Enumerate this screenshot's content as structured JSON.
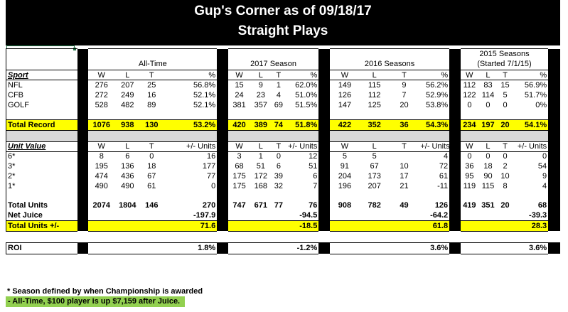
{
  "title": {
    "line1": "Gup's Corner as of 09/18/17",
    "line2": "Straight Plays"
  },
  "headers": {
    "alltime": "All-Time",
    "s2017": "2017 Season",
    "s2016": "2016 Seasons",
    "s2015a": "2015 Seasons",
    "s2015b": "(Started 7/1/15)"
  },
  "sport_section": {
    "label": "Sport",
    "cols": [
      "W",
      "L",
      "T",
      "%"
    ],
    "rows": [
      {
        "name": "NFL",
        "at": [
          "276",
          "207",
          "25",
          "56.8%"
        ],
        "s17": [
          "15",
          "9",
          "1",
          "62.0%"
        ],
        "s16": [
          "149",
          "115",
          "9",
          "56.2%"
        ],
        "s15": [
          "112",
          "83",
          "15",
          "56.9%"
        ]
      },
      {
        "name": "CFB",
        "at": [
          "272",
          "249",
          "16",
          "52.1%"
        ],
        "s17": [
          "24",
          "23",
          "4",
          "51.0%"
        ],
        "s16": [
          "126",
          "112",
          "7",
          "52.9%"
        ],
        "s15": [
          "122",
          "114",
          "5",
          "51.7%"
        ]
      },
      {
        "name": "GOLF",
        "at": [
          "528",
          "482",
          "89",
          "52.1%"
        ],
        "s17": [
          "381",
          "357",
          "69",
          "51.5%"
        ],
        "s16": [
          "147",
          "125",
          "20",
          "53.8%"
        ],
        "s15": [
          "0",
          "0",
          "0",
          "0%"
        ]
      }
    ],
    "total": {
      "name": "Total Record",
      "at": [
        "1076",
        "938",
        "130",
        "53.2%"
      ],
      "s17": [
        "420",
        "389",
        "74",
        "51.8%"
      ],
      "s16": [
        "422",
        "352",
        "36",
        "54.3%"
      ],
      "s15": [
        "234",
        "197",
        "20",
        "54.1%"
      ]
    }
  },
  "unit_section": {
    "label": "Unit Value",
    "cols": [
      "W",
      "L",
      "T",
      "+/- Units"
    ],
    "rows": [
      {
        "name": "6*",
        "at": [
          "8",
          "6",
          "0",
          "16"
        ],
        "s17": [
          "3",
          "1",
          "0",
          "12"
        ],
        "s16": [
          "5",
          "5",
          "",
          "4"
        ],
        "s15": [
          "0",
          "0",
          "0",
          "0"
        ]
      },
      {
        "name": "3*",
        "at": [
          "195",
          "136",
          "18",
          "177"
        ],
        "s17": [
          "68",
          "51",
          "6",
          "51"
        ],
        "s16": [
          "91",
          "67",
          "10",
          "72"
        ],
        "s15": [
          "36",
          "18",
          "2",
          "54"
        ]
      },
      {
        "name": "2*",
        "at": [
          "474",
          "436",
          "67",
          "77"
        ],
        "s17": [
          "175",
          "172",
          "39",
          "6"
        ],
        "s16": [
          "204",
          "173",
          "17",
          "61"
        ],
        "s15": [
          "95",
          "90",
          "10",
          "9"
        ]
      },
      {
        "name": "1*",
        "at": [
          "490",
          "490",
          "61",
          "0"
        ],
        "s17": [
          "175",
          "168",
          "32",
          "7"
        ],
        "s16": [
          "196",
          "207",
          "21",
          "-11"
        ],
        "s15": [
          "119",
          "115",
          "8",
          "4"
        ]
      }
    ],
    "total_units": {
      "name": "Total Units",
      "at": [
        "2074",
        "1804",
        "146",
        "270"
      ],
      "s17": [
        "747",
        "671",
        "77",
        "76"
      ],
      "s16": [
        "908",
        "782",
        "49",
        "126"
      ],
      "s15": [
        "419",
        "351",
        "20",
        "68"
      ]
    },
    "net_juice": {
      "name": "Net Juice",
      "at": "-197.9",
      "s17": "-94.5",
      "s16": "-64.2",
      "s15": "-39.3"
    },
    "total_pm": {
      "name": "Total Units +/-",
      "at": "71.6",
      "s17": "-18.5",
      "s16": "61.8",
      "s15": "28.3"
    }
  },
  "roi": {
    "name": "ROI",
    "at": "1.8%",
    "s17": "-1.2%",
    "s16": "3.6%",
    "s15": "3.6%"
  },
  "footnotes": {
    "note1": "* Season defined by when Championship is awarded",
    "note2": "- All-Time, $100 player is up $7,159 after Juice."
  },
  "colors": {
    "header_bg": "#000000",
    "highlight": "#ffff00",
    "separator": "#d9d9d9",
    "footnote_bg": "#92d050"
  }
}
